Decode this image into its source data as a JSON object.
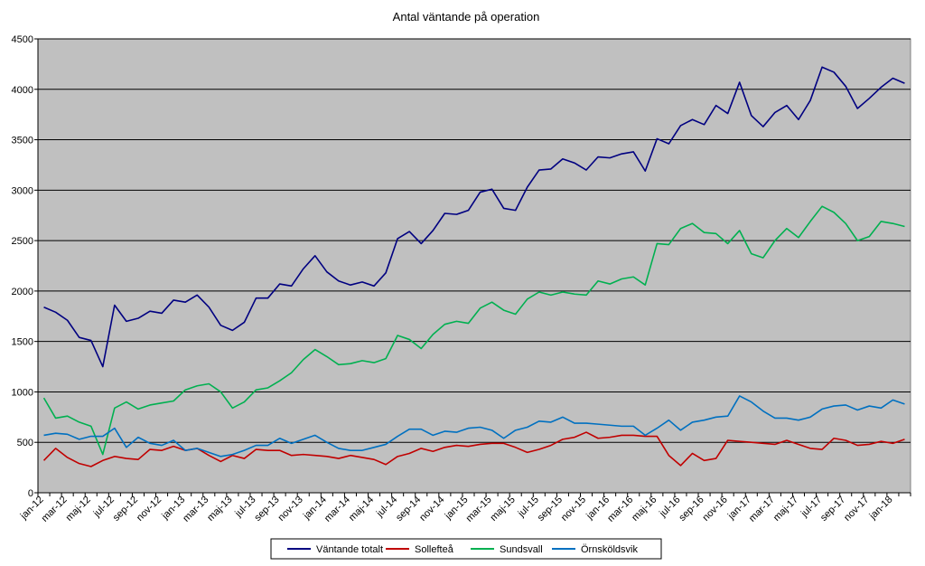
{
  "chart_data": {
    "type": "line",
    "title": "Antal väntande på operation",
    "xlabel": "",
    "ylabel": "",
    "ylim": [
      0,
      4500
    ],
    "y_ticks": [
      0,
      500,
      1000,
      1500,
      2000,
      2500,
      3000,
      3500,
      4000,
      4500
    ],
    "grid": "horizontal",
    "legend_position": "bottom",
    "x": [
      "jan-12",
      "feb-12",
      "mar-12",
      "apr-12",
      "maj-12",
      "jun-12",
      "jul-12",
      "aug-12",
      "sep-12",
      "okt-12",
      "nov-12",
      "dec-12",
      "jan-13",
      "feb-13",
      "mar-13",
      "apr-13",
      "maj-13",
      "jun-13",
      "jul-13",
      "aug-13",
      "sep-13",
      "okt-13",
      "nov-13",
      "dec-13",
      "jan-14",
      "feb-14",
      "mar-14",
      "apr-14",
      "maj-14",
      "jun-14",
      "jul-14",
      "aug-14",
      "sep-14",
      "okt-14",
      "nov-14",
      "dec-14",
      "jan-15",
      "feb-15",
      "mar-15",
      "apr-15",
      "maj-15",
      "jun-15",
      "jul-15",
      "aug-15",
      "sep-15",
      "okt-15",
      "nov-15",
      "dec-15",
      "jan-16",
      "feb-16",
      "mar-16",
      "apr-16",
      "maj-16",
      "jun-16",
      "jul-16",
      "aug-16",
      "sep-16",
      "okt-16",
      "nov-16",
      "dec-16",
      "jan-17",
      "feb-17",
      "mar-17",
      "apr-17",
      "maj-17",
      "jun-17",
      "jul-17",
      "aug-17",
      "sep-17",
      "okt-17",
      "nov-17",
      "dec-17",
      "jan-18",
      "feb-18"
    ],
    "tick_labels": [
      "jan-12",
      "mar-12",
      "maj-12",
      "jul-12",
      "sep-12",
      "nov-12",
      "jan-13",
      "mar-13",
      "maj-13",
      "jul-13",
      "sep-13",
      "nov-13",
      "jan-14",
      "mar-14",
      "maj-14",
      "jul-14",
      "sep-14",
      "nov-14",
      "jan-15",
      "mar-15",
      "maj-15",
      "jul-15",
      "sep-15",
      "nov-15",
      "jan-16",
      "mar-16",
      "maj-16",
      "jul-16",
      "sep-16",
      "nov-16",
      "jan-17",
      "mar-17",
      "maj-17",
      "jul-17",
      "sep-17",
      "nov-17",
      "jan-18"
    ],
    "series": [
      {
        "name": "Väntande totalt",
        "color": "#000080",
        "values": [
          1840,
          1790,
          1710,
          1540,
          1510,
          1250,
          1860,
          1700,
          1730,
          1800,
          1780,
          1910,
          1890,
          1960,
          1840,
          1660,
          1610,
          1690,
          1930,
          1930,
          2070,
          2050,
          2220,
          2350,
          2190,
          2100,
          2060,
          2090,
          2050,
          2180,
          2520,
          2590,
          2470,
          2600,
          2770,
          2760,
          2800,
          2980,
          3010,
          2820,
          2800,
          3030,
          3200,
          3210,
          3310,
          3270,
          3200,
          3330,
          3320,
          3360,
          3380,
          3190,
          3510,
          3460,
          3640,
          3700,
          3650,
          3840,
          3760,
          4070,
          3740,
          3630,
          3770,
          3840,
          3700,
          3890,
          4220,
          4170,
          4030,
          3810,
          3910,
          4020,
          4110,
          4060
        ]
      },
      {
        "name": "Sollefteå",
        "color": "#c00000",
        "values": [
          320,
          440,
          350,
          290,
          260,
          320,
          360,
          340,
          330,
          430,
          420,
          460,
          420,
          440,
          370,
          310,
          370,
          340,
          430,
          420,
          420,
          370,
          380,
          370,
          360,
          340,
          370,
          350,
          330,
          280,
          360,
          390,
          440,
          410,
          450,
          470,
          460,
          480,
          490,
          490,
          450,
          400,
          430,
          470,
          530,
          550,
          600,
          540,
          550,
          570,
          570,
          560,
          560,
          370,
          270,
          390,
          320,
          340,
          520,
          510,
          500,
          490,
          480,
          520,
          480,
          440,
          430,
          540,
          520,
          470,
          480,
          510,
          490,
          530
        ]
      },
      {
        "name": "Sundsvall",
        "color": "#00b050",
        "values": [
          940,
          740,
          760,
          700,
          660,
          380,
          840,
          900,
          830,
          870,
          890,
          910,
          1020,
          1060,
          1080,
          1000,
          840,
          900,
          1020,
          1040,
          1110,
          1190,
          1320,
          1420,
          1350,
          1270,
          1280,
          1310,
          1290,
          1330,
          1560,
          1520,
          1430,
          1570,
          1670,
          1700,
          1680,
          1830,
          1890,
          1810,
          1770,
          1920,
          1990,
          1960,
          1990,
          1970,
          1960,
          2100,
          2070,
          2120,
          2140,
          2060,
          2470,
          2460,
          2620,
          2670,
          2580,
          2570,
          2470,
          2600,
          2370,
          2330,
          2500,
          2620,
          2530,
          2690,
          2840,
          2780,
          2670,
          2500,
          2540,
          2690,
          2670,
          2640
        ]
      },
      {
        "name": "Örnsköldsvik",
        "color": "#0070c0",
        "values": [
          570,
          590,
          580,
          530,
          560,
          560,
          640,
          450,
          550,
          490,
          470,
          520,
          420,
          440,
          400,
          360,
          380,
          420,
          470,
          470,
          540,
          490,
          530,
          570,
          500,
          440,
          420,
          420,
          450,
          480,
          560,
          630,
          630,
          570,
          610,
          600,
          640,
          650,
          620,
          540,
          620,
          650,
          710,
          700,
          750,
          690,
          690,
          680,
          670,
          660,
          660,
          570,
          640,
          720,
          620,
          700,
          720,
          750,
          760,
          960,
          900,
          810,
          740,
          740,
          720,
          750,
          830,
          860,
          870,
          820,
          860,
          840,
          920,
          880
        ]
      }
    ]
  }
}
